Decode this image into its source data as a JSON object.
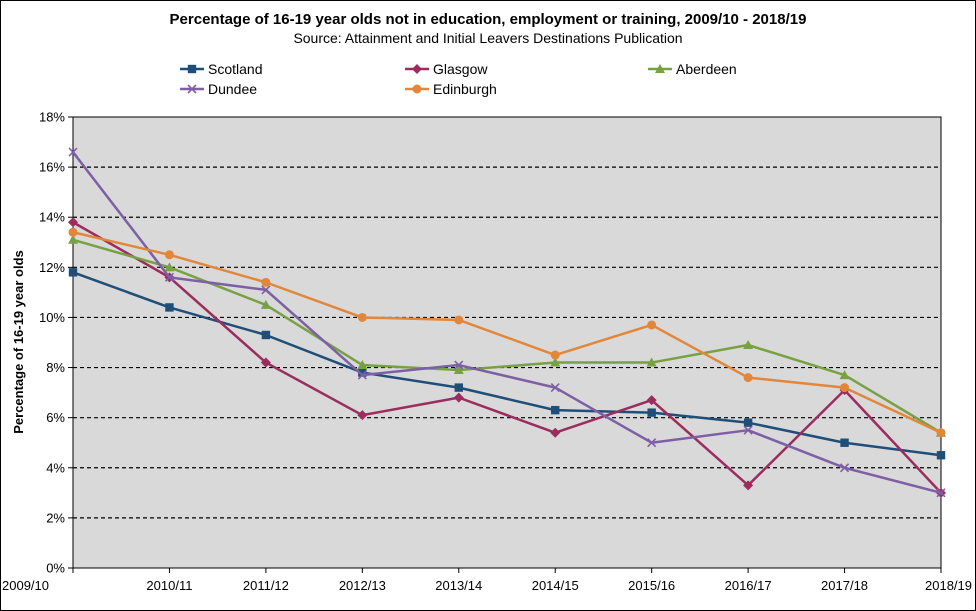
{
  "chart_data": {
    "type": "line",
    "title": "Percentage of 16-19 year olds not in education, employment or training, 2009/10 - 2018/19",
    "subtitle": "Source: Attainment and Initial Leavers Destinations Publication",
    "xlabel": "",
    "ylabel": "Percentage of 16-19 year olds",
    "categories": [
      "2009/10",
      "2010/11",
      "2011/12",
      "2012/13",
      "2013/14",
      "2014/15",
      "2015/16",
      "2016/17",
      "2017/18",
      "2018/19"
    ],
    "ylim": [
      0,
      18
    ],
    "y_ticks": [
      0,
      2,
      4,
      6,
      8,
      10,
      12,
      14,
      16,
      18
    ],
    "y_tick_suffix": "%",
    "grid": "horizontal dashed",
    "plot_background": "#d9d9d9",
    "legend": "top",
    "series": [
      {
        "name": "Scotland",
        "color": "#1f4e79",
        "marker": "square",
        "values": [
          11.8,
          10.4,
          9.3,
          7.8,
          7.2,
          6.3,
          6.2,
          5.8,
          5.0,
          4.5
        ]
      },
      {
        "name": "Glasgow",
        "color": "#9b2d5e",
        "marker": "diamond",
        "values": [
          13.8,
          11.6,
          8.2,
          6.1,
          6.8,
          5.4,
          6.7,
          3.3,
          7.1,
          3.0
        ]
      },
      {
        "name": "Aberdeen",
        "color": "#77a143",
        "marker": "triangle",
        "values": [
          13.1,
          12.0,
          10.5,
          8.1,
          7.9,
          8.2,
          8.2,
          8.9,
          7.7,
          5.4
        ]
      },
      {
        "name": "Dundee",
        "color": "#7d5fa6",
        "marker": "x",
        "values": [
          16.6,
          11.6,
          11.1,
          7.7,
          8.1,
          7.2,
          5.0,
          5.5,
          4.0,
          3.0
        ]
      },
      {
        "name": "Edinburgh",
        "color": "#e2873a",
        "marker": "circle",
        "values": [
          13.4,
          12.5,
          11.4,
          10.0,
          9.9,
          8.5,
          9.7,
          7.6,
          7.2,
          5.4
        ]
      }
    ]
  }
}
